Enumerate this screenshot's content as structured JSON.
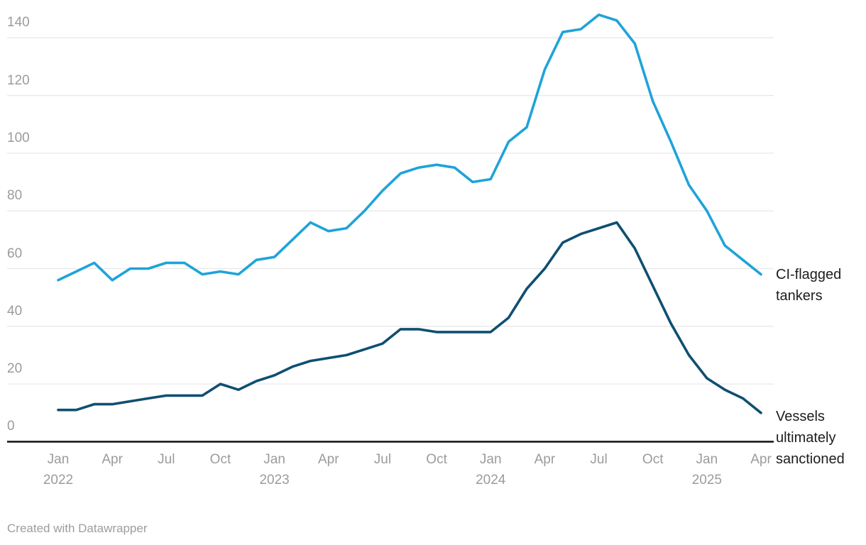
{
  "chart_data": {
    "type": "line",
    "title": "",
    "xlabel": "",
    "ylabel": "",
    "x_start": "Jan 2022",
    "x_end": "Apr 2025",
    "months": [
      "Jan 2022",
      "Feb 2022",
      "Mar 2022",
      "Apr 2022",
      "May 2022",
      "Jun 2022",
      "Jul 2022",
      "Aug 2022",
      "Sep 2022",
      "Oct 2022",
      "Nov 2022",
      "Dec 2022",
      "Jan 2023",
      "Feb 2023",
      "Mar 2023",
      "Apr 2023",
      "May 2023",
      "Jun 2023",
      "Jul 2023",
      "Aug 2023",
      "Sep 2023",
      "Oct 2023",
      "Nov 2023",
      "Dec 2023",
      "Jan 2024",
      "Feb 2024",
      "Mar 2024",
      "Apr 2024",
      "May 2024",
      "Jun 2024",
      "Jul 2024",
      "Aug 2024",
      "Sep 2024",
      "Oct 2024",
      "Nov 2024",
      "Dec 2024",
      "Jan 2025",
      "Feb 2025",
      "Mar 2025",
      "Apr 2025"
    ],
    "series": [
      {
        "name": "CI-flagged tankers",
        "label_lines": "CI-flagged\ntankers",
        "color": "#1fa3d9",
        "values": [
          56,
          59,
          62,
          56,
          60,
          60,
          62,
          62,
          58,
          59,
          58,
          63,
          64,
          70,
          76,
          73,
          74,
          80,
          87,
          93,
          95,
          96,
          95,
          90,
          91,
          104,
          109,
          129,
          142,
          143,
          148,
          146,
          138,
          118,
          104,
          89,
          80,
          68,
          63,
          58
        ]
      },
      {
        "name": "Vessels ultimately sanctioned",
        "label_lines": "Vessels\nultimately\nsanctioned",
        "color": "#0f4f72",
        "values": [
          11,
          11,
          13,
          13,
          14,
          15,
          16,
          16,
          16,
          20,
          18,
          21,
          23,
          26,
          28,
          29,
          30,
          32,
          34,
          39,
          39,
          38,
          38,
          38,
          38,
          43,
          53,
          60,
          69,
          72,
          74,
          76,
          67,
          54,
          41,
          30,
          22,
          18,
          15,
          10
        ]
      }
    ],
    "y_ticks": [
      0,
      20,
      40,
      60,
      80,
      100,
      120,
      140
    ],
    "ylim": [
      0,
      148
    ],
    "x_ticks": [
      {
        "i": 0,
        "month": "Jan",
        "year": "2022"
      },
      {
        "i": 3,
        "month": "Apr"
      },
      {
        "i": 6,
        "month": "Jul"
      },
      {
        "i": 9,
        "month": "Oct"
      },
      {
        "i": 12,
        "month": "Jan",
        "year": "2023"
      },
      {
        "i": 15,
        "month": "Apr"
      },
      {
        "i": 18,
        "month": "Jul"
      },
      {
        "i": 21,
        "month": "Oct"
      },
      {
        "i": 24,
        "month": "Jan",
        "year": "2024"
      },
      {
        "i": 27,
        "month": "Apr"
      },
      {
        "i": 30,
        "month": "Jul"
      },
      {
        "i": 33,
        "month": "Oct"
      },
      {
        "i": 36,
        "month": "Jan",
        "year": "2025"
      },
      {
        "i": 39,
        "month": "Apr"
      }
    ],
    "grid": "horizontal",
    "legend_position": "right-of-line-ends",
    "colors": {
      "gridline": "#e8e8e8",
      "axis_line": "#191919",
      "tick_text": "#9b9b9b",
      "label_text": "#1d1d1d"
    }
  },
  "footer": {
    "credit": "Created with Datawrapper"
  }
}
